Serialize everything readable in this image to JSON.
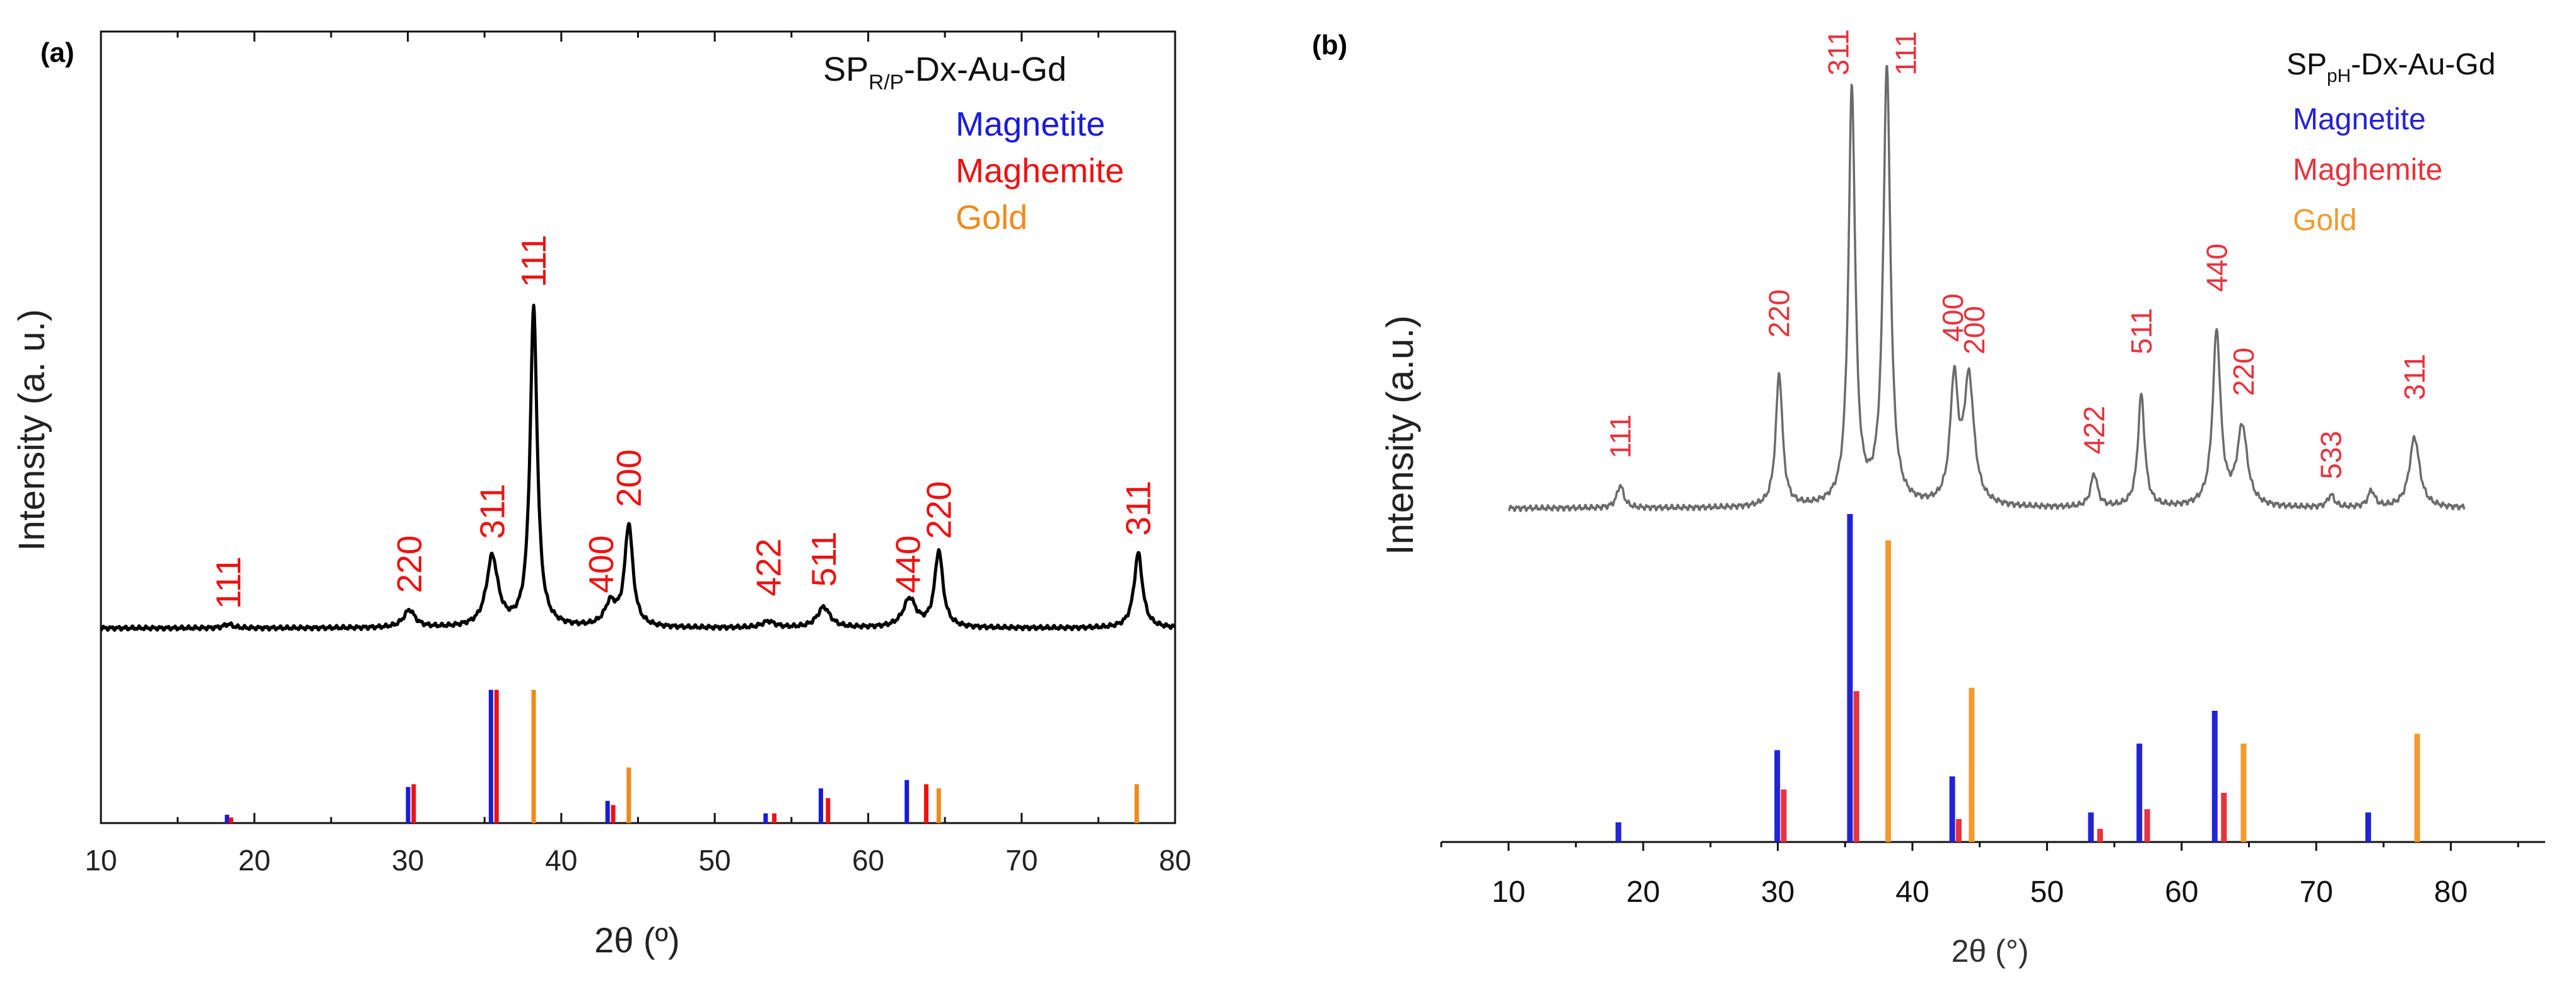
{
  "chart_data": [
    {
      "type": "line",
      "panel_label": "(a)",
      "title": "SP_R/P-Dx-Au-Gd",
      "title_main": "SP",
      "title_sub": "R/P",
      "title_rest": "-Dx-Au-Gd",
      "xlabel": "2θ (º)",
      "ylabel": "Intensity (a. u.)",
      "xlim": [
        10,
        80
      ],
      "xticks": [
        10,
        20,
        30,
        40,
        50,
        60,
        70,
        80
      ],
      "tick_labels": [
        "10",
        "20",
        "30",
        "40",
        "50",
        "60",
        "70",
        "80"
      ],
      "legend": [
        {
          "name": "Magnetite",
          "color": "#1a1adb"
        },
        {
          "name": "Maghemite",
          "color": "#ee1111"
        },
        {
          "name": "Gold",
          "color": "#f08a1c"
        }
      ],
      "pattern": {
        "color": "#000000",
        "baseline": 0,
        "peaks": [
          {
            "x": 18.3,
            "h": 0.012,
            "w": 0.35
          },
          {
            "x": 30.1,
            "h": 0.055,
            "w": 0.45
          },
          {
            "x": 35.5,
            "h": 0.22,
            "w": 0.45
          },
          {
            "x": 38.2,
            "h": 1.0,
            "w": 0.28
          },
          {
            "x": 43.2,
            "h": 0.07,
            "w": 0.45
          },
          {
            "x": 44.4,
            "h": 0.32,
            "w": 0.32
          },
          {
            "x": 53.5,
            "h": 0.02,
            "w": 0.5
          },
          {
            "x": 57.1,
            "h": 0.065,
            "w": 0.5
          },
          {
            "x": 62.7,
            "h": 0.09,
            "w": 0.5
          },
          {
            "x": 64.6,
            "h": 0.24,
            "w": 0.32
          },
          {
            "x": 77.6,
            "h": 0.235,
            "w": 0.33
          }
        ]
      },
      "annotations": [
        {
          "text": "111",
          "x": 18.3,
          "y": 0.06
        },
        {
          "text": "220",
          "x": 30.1,
          "y": 0.11
        },
        {
          "text": "311",
          "x": 35.5,
          "y": 0.28
        },
        {
          "text": "111",
          "x": 38.2,
          "y": 1.07
        },
        {
          "text": "400",
          "x": 42.6,
          "y": 0.11
        },
        {
          "text": "200",
          "x": 44.4,
          "y": 0.38
        },
        {
          "text": "422",
          "x": 53.5,
          "y": 0.1
        },
        {
          "text": "511",
          "x": 57.1,
          "y": 0.13
        },
        {
          "text": "440",
          "x": 62.6,
          "y": 0.11
        },
        {
          "text": "220",
          "x": 64.6,
          "y": 0.28
        },
        {
          "text": "311",
          "x": 77.6,
          "y": 0.29
        }
      ],
      "reference": {
        "Magnetite": [
          [
            18.3,
            0.06
          ],
          [
            30.1,
            0.26
          ],
          [
            35.5,
            0.96
          ],
          [
            43.1,
            0.16
          ],
          [
            53.4,
            0.07
          ],
          [
            57.0,
            0.25
          ],
          [
            62.6,
            0.31
          ]
        ],
        "Maghemite": [
          [
            18.4,
            0.04
          ],
          [
            30.3,
            0.28
          ],
          [
            35.7,
            0.96
          ],
          [
            43.3,
            0.13
          ],
          [
            53.8,
            0.07
          ],
          [
            57.3,
            0.18
          ],
          [
            63.7,
            0.28
          ]
        ],
        "Gold": [
          [
            38.2,
            0.96
          ],
          [
            44.4,
            0.4
          ],
          [
            64.6,
            0.25
          ],
          [
            77.5,
            0.28
          ]
        ]
      }
    },
    {
      "type": "line",
      "panel_label": "(b)",
      "title": "SP_pH-Dx-Au-Gd",
      "title_main": "SP",
      "title_sub": "pH",
      "title_rest": "-Dx-Au-Gd",
      "xlabel": "2θ (°)",
      "ylabel": "Intensity (a.u.)",
      "xlim": [
        5,
        87
      ],
      "xticks": [
        10,
        20,
        30,
        40,
        50,
        60,
        70,
        80
      ],
      "tick_labels": [
        "10",
        "20",
        "30",
        "40",
        "50",
        "60",
        "70",
        "80"
      ],
      "legend": [
        {
          "name": "Magnetite",
          "color": "#2323d6"
        },
        {
          "name": "Maghemite",
          "color": "#e8323c"
        },
        {
          "name": "Gold",
          "color": "#f29a2e"
        }
      ],
      "pattern": {
        "color": "#6b6b6b",
        "xrange": [
          10,
          81
        ],
        "peaks": [
          {
            "x": 18.3,
            "h": 0.055,
            "w": 0.3
          },
          {
            "x": 30.1,
            "h": 0.32,
            "w": 0.3
          },
          {
            "x": 35.5,
            "h": 1.0,
            "w": 0.3
          },
          {
            "x": 38.1,
            "h": 1.05,
            "w": 0.32
          },
          {
            "x": 43.1,
            "h": 0.29,
            "w": 0.35
          },
          {
            "x": 44.2,
            "h": 0.3,
            "w": 0.45
          },
          {
            "x": 53.5,
            "h": 0.08,
            "w": 0.3
          },
          {
            "x": 57.0,
            "h": 0.27,
            "w": 0.3
          },
          {
            "x": 62.6,
            "h": 0.42,
            "w": 0.35
          },
          {
            "x": 64.5,
            "h": 0.19,
            "w": 0.45
          },
          {
            "x": 71.1,
            "h": 0.03,
            "w": 0.3
          },
          {
            "x": 74.1,
            "h": 0.04,
            "w": 0.3
          },
          {
            "x": 77.3,
            "h": 0.17,
            "w": 0.45
          }
        ]
      },
      "annotations": [
        {
          "text": "111",
          "x": 18.3,
          "y": 0.12
        },
        {
          "text": "220",
          "x": 30.1,
          "y": 0.41
        },
        {
          "text": "311",
          "x": 34.5,
          "y": 1.04
        },
        {
          "text": "111",
          "x": 39.5,
          "y": 1.04
        },
        {
          "text": "400",
          "x": 43.0,
          "y": 0.4
        },
        {
          "text": "200",
          "x": 44.6,
          "y": 0.37
        },
        {
          "text": "422",
          "x": 53.5,
          "y": 0.13
        },
        {
          "text": "511",
          "x": 57.0,
          "y": 0.37
        },
        {
          "text": "440",
          "x": 62.6,
          "y": 0.52
        },
        {
          "text": "220",
          "x": 64.6,
          "y": 0.27
        },
        {
          "text": "533",
          "x": 71.1,
          "y": 0.07
        },
        {
          "text": "311",
          "x": 77.3,
          "y": 0.26
        }
      ],
      "reference": {
        "Magnetite": [
          [
            18.3,
            0.06
          ],
          [
            30.1,
            0.28
          ],
          [
            35.5,
            1.0
          ],
          [
            43.1,
            0.2
          ],
          [
            53.4,
            0.09
          ],
          [
            57.0,
            0.3
          ],
          [
            62.6,
            0.4
          ],
          [
            74.0,
            0.09
          ]
        ],
        "Maghemite": [
          [
            30.3,
            0.16
          ],
          [
            35.7,
            0.46
          ],
          [
            43.3,
            0.07
          ],
          [
            53.8,
            0.04
          ],
          [
            57.3,
            0.1
          ],
          [
            63.0,
            0.15
          ]
        ],
        "Gold": [
          [
            38.2,
            0.92
          ],
          [
            44.4,
            0.47
          ],
          [
            64.6,
            0.3
          ],
          [
            77.5,
            0.33
          ]
        ]
      }
    }
  ]
}
